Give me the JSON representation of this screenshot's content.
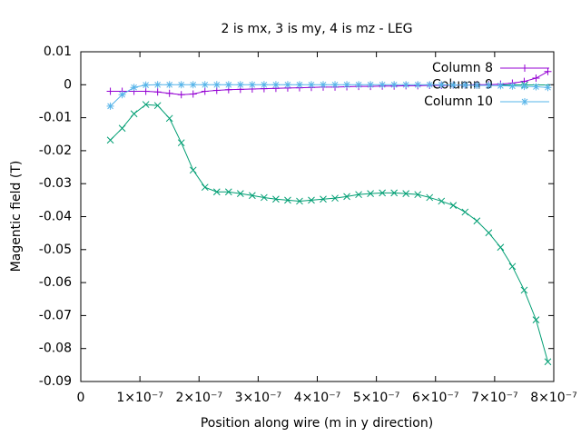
{
  "chart_data": {
    "type": "line",
    "title": "2 is mx, 3 is my, 4 is mz - LEG",
    "x_label": "Position along wire (m in y direction)",
    "y_label": "Magentic field (T)",
    "x": [
      5e-08,
      7e-08,
      9e-08,
      1.1e-07,
      1.3e-07,
      1.5e-07,
      1.7e-07,
      1.9e-07,
      2.1e-07,
      2.3e-07,
      2.5e-07,
      2.7e-07,
      2.9e-07,
      3.1e-07,
      3.3e-07,
      3.5e-07,
      3.7e-07,
      3.9e-07,
      4.1e-07,
      4.3e-07,
      4.5e-07,
      4.7e-07,
      4.9e-07,
      5.1e-07,
      5.3e-07,
      5.5e-07,
      5.7e-07,
      5.9e-07,
      6.1e-07,
      6.3e-07,
      6.5e-07,
      6.7e-07,
      6.9e-07,
      7.1e-07,
      7.3e-07,
      7.5e-07,
      7.7e-07,
      7.9e-07
    ],
    "series": [
      {
        "name": "Column 8",
        "color": "#9400d3",
        "marker": "plus",
        "values": [
          -0.002,
          -0.002,
          -0.002,
          -0.002,
          -0.0022,
          -0.0026,
          -0.003,
          -0.0028,
          -0.002,
          -0.0017,
          -0.0015,
          -0.0014,
          -0.0013,
          -0.0012,
          -0.0011,
          -0.001,
          -0.0009,
          -0.0008,
          -0.0007,
          -0.0007,
          -0.0006,
          -0.0005,
          -0.0005,
          -0.0004,
          -0.0004,
          -0.0003,
          -0.0003,
          -0.0002,
          -0.0002,
          -0.0001,
          -0.0001,
          0,
          0,
          0.0002,
          0.0005,
          0.001,
          0.002,
          0.004
        ]
      },
      {
        "name": "Column 9",
        "color": "#009e73",
        "marker": "cross",
        "values": [
          -0.0168,
          -0.0132,
          -0.0088,
          -0.006,
          -0.0063,
          -0.0102,
          -0.0176,
          -0.0259,
          -0.0311,
          -0.0325,
          -0.0325,
          -0.033,
          -0.0336,
          -0.0342,
          -0.0347,
          -0.035,
          -0.0353,
          -0.035,
          -0.0347,
          -0.0344,
          -0.0339,
          -0.0333,
          -0.033,
          -0.0328,
          -0.0328,
          -0.033,
          -0.0333,
          -0.0342,
          -0.0353,
          -0.0366,
          -0.0386,
          -0.0413,
          -0.0449,
          -0.0493,
          -0.0551,
          -0.0623,
          -0.0713,
          -0.084
        ]
      },
      {
        "name": "Column 10",
        "color": "#56b4e9",
        "marker": "star",
        "values": [
          -0.0065,
          -0.003,
          -0.0008,
          -0.0001,
          0,
          0,
          0,
          0,
          0,
          0,
          0,
          0,
          0,
          0,
          0,
          0,
          0,
          0,
          0,
          0,
          0,
          0,
          0,
          0,
          0,
          0,
          0,
          0,
          0,
          -0.0001,
          -0.0001,
          -0.0002,
          -0.0002,
          -0.0003,
          -0.0004,
          -0.0005,
          -0.0006,
          -0.0008
        ]
      }
    ],
    "xlim": [
      0,
      8e-07
    ],
    "xticks": [
      0,
      {
        "value": 1e-07,
        "label": "1×10⁻⁷"
      },
      {
        "value": 2e-07,
        "label": "2×10⁻⁷"
      },
      {
        "value": 3e-07,
        "label": "3×10⁻⁷"
      },
      {
        "value": 4e-07,
        "label": "4×10⁻⁷"
      },
      {
        "value": 5e-07,
        "label": "5×10⁻⁷"
      },
      {
        "value": 6e-07,
        "label": "6×10⁻⁷"
      },
      {
        "value": 7e-07,
        "label": "7×10⁻⁷"
      },
      {
        "value": 8e-07,
        "label": "8×10⁻⁷"
      }
    ],
    "ylim": [
      -0.09,
      0.01
    ],
    "yticks": [
      0.01,
      0,
      -0.01,
      -0.02,
      -0.03,
      -0.04,
      -0.05,
      -0.06,
      -0.07,
      -0.08,
      -0.09
    ],
    "grid": false,
    "legend": "top-right"
  }
}
